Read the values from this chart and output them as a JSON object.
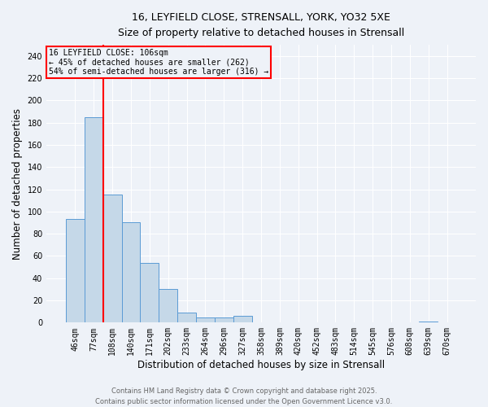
{
  "title_line1": "16, LEYFIELD CLOSE, STRENSALL, YORK, YO32 5XE",
  "title_line2": "Size of property relative to detached houses in Strensall",
  "xlabel": "Distribution of detached houses by size in Strensall",
  "ylabel": "Number of detached properties",
  "bar_labels": [
    "46sqm",
    "77sqm",
    "108sqm",
    "140sqm",
    "171sqm",
    "202sqm",
    "233sqm",
    "264sqm",
    "296sqm",
    "327sqm",
    "358sqm",
    "389sqm",
    "420sqm",
    "452sqm",
    "483sqm",
    "514sqm",
    "545sqm",
    "576sqm",
    "608sqm",
    "639sqm",
    "670sqm"
  ],
  "bar_values": [
    93,
    185,
    115,
    90,
    54,
    30,
    9,
    5,
    5,
    6,
    0,
    0,
    0,
    0,
    0,
    0,
    0,
    0,
    0,
    1,
    0
  ],
  "bar_color": "#c5d8e8",
  "bar_edgecolor": "#5b9bd5",
  "vline_position": 1.5,
  "vline_color": "red",
  "ylim": [
    0,
    250
  ],
  "yticks": [
    0,
    20,
    40,
    60,
    80,
    100,
    120,
    140,
    160,
    180,
    200,
    220,
    240
  ],
  "annotation_title": "16 LEYFIELD CLOSE: 106sqm",
  "annotation_line2": "← 45% of detached houses are smaller (262)",
  "annotation_line3": "54% of semi-detached houses are larger (316) →",
  "annotation_box_color": "red",
  "footer_line1": "Contains HM Land Registry data © Crown copyright and database right 2025.",
  "footer_line2": "Contains public sector information licensed under the Open Government Licence v3.0.",
  "background_color": "#eef2f8",
  "grid_color": "#ffffff"
}
